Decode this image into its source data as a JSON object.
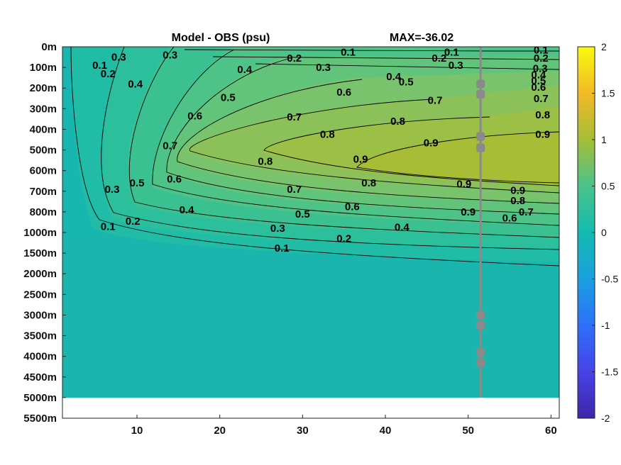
{
  "chart_data": {
    "type": "heatmap",
    "title_left": "Model - OBS (psu)",
    "title_right": "MAX=-36.02",
    "y_tick_labels": [
      "0m",
      "100m",
      "200m",
      "300m",
      "400m",
      "500m",
      "600m",
      "700m",
      "800m",
      "1000m",
      "1500m",
      "2000m",
      "2500m",
      "3000m",
      "3500m",
      "4000m",
      "4500m",
      "5000m",
      "5500m"
    ],
    "x_ticks": [
      10,
      20,
      30,
      40,
      50,
      60
    ],
    "xlim": [
      1,
      61
    ],
    "colorbar": {
      "range": [
        -2,
        2
      ],
      "ticks": [
        "2",
        "1.5",
        "1",
        "0.5",
        "0",
        "-0.5",
        "-1",
        "-1.5",
        "-2"
      ]
    },
    "contour_levels": [
      0.1,
      0.2,
      0.3,
      0.4,
      0.5,
      0.6,
      0.7,
      0.8,
      0.9
    ],
    "contour_labels": [
      {
        "text": "0.1",
        "x": 5.5,
        "y": 0.9
      },
      {
        "text": "0.2",
        "x": 6.5,
        "y": 1.3
      },
      {
        "text": "0.3",
        "x": 7.8,
        "y": 0.5
      },
      {
        "text": "0.4",
        "x": 9.8,
        "y": 1.8
      },
      {
        "text": "0.3",
        "x": 14.0,
        "y": 0.4
      },
      {
        "text": "0.4",
        "x": 23.0,
        "y": 1.1
      },
      {
        "text": "0.2",
        "x": 29.0,
        "y": 0.55
      },
      {
        "text": "0.1",
        "x": 35.5,
        "y": 0.25
      },
      {
        "text": "0.3",
        "x": 32.5,
        "y": 1.0
      },
      {
        "text": "0.5",
        "x": 21.0,
        "y": 2.45
      },
      {
        "text": "0.6",
        "x": 17.0,
        "y": 3.35
      },
      {
        "text": "0.7",
        "x": 29.0,
        "y": 3.4
      },
      {
        "text": "0.6",
        "x": 35.0,
        "y": 2.2
      },
      {
        "text": "0.4",
        "x": 41.0,
        "y": 1.45
      },
      {
        "text": "0.5",
        "x": 42.5,
        "y": 1.7
      },
      {
        "text": "0.2",
        "x": 46.5,
        "y": 0.55
      },
      {
        "text": "0.3",
        "x": 48.5,
        "y": 0.9
      },
      {
        "text": "0.1",
        "x": 48.0,
        "y": 0.25
      },
      {
        "text": "0.7",
        "x": 46.0,
        "y": 2.6
      },
      {
        "text": "0.8",
        "x": 41.5,
        "y": 3.6
      },
      {
        "text": "0.8",
        "x": 33.0,
        "y": 4.25
      },
      {
        "text": "0.9",
        "x": 45.5,
        "y": 4.65
      },
      {
        "text": "0.7",
        "x": 14.0,
        "y": 4.8
      },
      {
        "text": "0.8",
        "x": 25.5,
        "y": 5.55
      },
      {
        "text": "0.9",
        "x": 37.0,
        "y": 5.45
      },
      {
        "text": "0.6",
        "x": 14.5,
        "y": 6.4
      },
      {
        "text": "0.5",
        "x": 10.0,
        "y": 6.6
      },
      {
        "text": "0.3",
        "x": 7.0,
        "y": 6.9
      },
      {
        "text": "0.7",
        "x": 29.0,
        "y": 6.9
      },
      {
        "text": "0.8",
        "x": 38.0,
        "y": 6.6
      },
      {
        "text": "0.4",
        "x": 16.0,
        "y": 7.9
      },
      {
        "text": "0.6",
        "x": 36.0,
        "y": 7.75
      },
      {
        "text": "0.5",
        "x": 30.0,
        "y": 8.1
      },
      {
        "text": "0.2",
        "x": 9.5,
        "y": 8.45
      },
      {
        "text": "0.1",
        "x": 6.5,
        "y": 8.7
      },
      {
        "text": "0.3",
        "x": 27.0,
        "y": 8.8
      },
      {
        "text": "0.4",
        "x": 42.0,
        "y": 8.75
      },
      {
        "text": "0.2",
        "x": 35.0,
        "y": 9.3
      },
      {
        "text": "0.1",
        "x": 27.5,
        "y": 9.75
      },
      {
        "text": "0.9",
        "x": 56.0,
        "y": 6.95
      },
      {
        "text": "0.8",
        "x": 56.0,
        "y": 7.45
      },
      {
        "text": "0.7",
        "x": 57.0,
        "y": 8.0
      },
      {
        "text": "0.6",
        "x": 55.0,
        "y": 8.3
      },
      {
        "text": "0.9",
        "x": 59.0,
        "y": 4.25
      },
      {
        "text": "0.8",
        "x": 59.0,
        "y": 3.3
      },
      {
        "text": "0.7",
        "x": 58.8,
        "y": 2.5
      },
      {
        "text": "0.6",
        "x": 58.5,
        "y": 1.95
      },
      {
        "text": "0.5",
        "x": 58.5,
        "y": 1.65
      },
      {
        "text": "0.4",
        "x": 58.5,
        "y": 1.35
      },
      {
        "text": "0.3",
        "x": 58.7,
        "y": 1.05
      },
      {
        "text": "0.2",
        "x": 58.8,
        "y": 0.55
      },
      {
        "text": "0.1",
        "x": 58.8,
        "y": 0.15
      },
      {
        "text": "0.9",
        "x": 49.5,
        "y": 6.65
      },
      {
        "text": "0.9",
        "x": 50.0,
        "y": 8.0
      }
    ],
    "vertical_line_x": 51.5,
    "markers_depth_index": [
      1.8,
      2.3,
      4.35,
      4.9,
      13.0,
      13.5,
      14.8,
      15.3
    ]
  },
  "colors": {
    "background_field": "#1ab5b2",
    "core_high": "#a0bd32",
    "vertical_line": "#8a8a8a",
    "marker": "#8a8a8a",
    "colormap": [
      "#3e26a8",
      "#4743e6",
      "#2d70fa",
      "#1aa0e0",
      "#14bab0",
      "#4ac38c",
      "#a5be36",
      "#f2b927",
      "#f9fb0e"
    ]
  }
}
